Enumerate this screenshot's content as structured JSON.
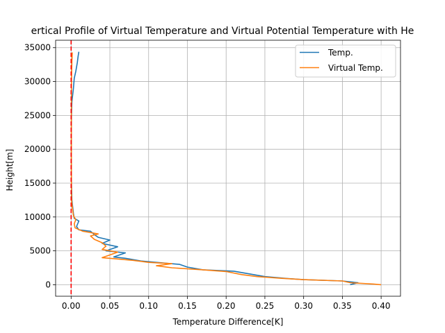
{
  "chart_data": {
    "type": "line",
    "title": "ertical Profile of Virtual Temperature and Virtual Potential Temperature with He",
    "xlabel": "Temperature Difference[K]",
    "ylabel": "Height[m]",
    "xlim": [
      -0.02,
      0.425
    ],
    "ylim": [
      -1700,
      36100
    ],
    "xticks": [
      0.0,
      0.05,
      0.1,
      0.15,
      0.2,
      0.25,
      0.3,
      0.35,
      0.4
    ],
    "xtick_labels": [
      "0.00",
      "0.05",
      "0.10",
      "0.15",
      "0.20",
      "0.25",
      "0.30",
      "0.35",
      "0.40"
    ],
    "yticks": [
      0,
      5000,
      10000,
      15000,
      20000,
      25000,
      30000,
      35000
    ],
    "ytick_labels": [
      "0",
      "5000",
      "10000",
      "15000",
      "20000",
      "25000",
      "30000",
      "35000"
    ],
    "grid": true,
    "legend_position": "top-right",
    "reference_line": {
      "x": 0.0,
      "color": "#ff0000",
      "style": "dashed"
    },
    "series": [
      {
        "name": "Temp.",
        "color": "#1f77b4",
        "points": [
          [
            0.36,
            0
          ],
          [
            0.37,
            300
          ],
          [
            0.35,
            550
          ],
          [
            0.3,
            750
          ],
          [
            0.28,
            900
          ],
          [
            0.25,
            1200
          ],
          [
            0.23,
            1600
          ],
          [
            0.21,
            2000
          ],
          [
            0.17,
            2200
          ],
          [
            0.15,
            2600
          ],
          [
            0.14,
            3000
          ],
          [
            0.12,
            3200
          ],
          [
            0.09,
            3500
          ],
          [
            0.07,
            3900
          ],
          [
            0.055,
            4100
          ],
          [
            0.07,
            4700
          ],
          [
            0.045,
            5000
          ],
          [
            0.06,
            5600
          ],
          [
            0.04,
            6100
          ],
          [
            0.05,
            6600
          ],
          [
            0.035,
            7000
          ],
          [
            0.03,
            7400
          ],
          [
            0.025,
            7900
          ],
          [
            0.01,
            8100
          ],
          [
            0.007,
            8600
          ],
          [
            0.01,
            9400
          ],
          [
            0.004,
            9800
          ],
          [
            0.003,
            10500
          ],
          [
            0.002,
            11500
          ],
          [
            0.001,
            12500
          ],
          [
            0.0005,
            15000
          ],
          [
            0.0003,
            20000
          ],
          [
            0.0005,
            25000
          ],
          [
            0.001,
            27000
          ],
          [
            0.003,
            29000
          ],
          [
            0.004,
            30500
          ],
          [
            0.006,
            31500
          ],
          [
            0.008,
            32800
          ],
          [
            0.009,
            33700
          ],
          [
            0.01,
            34400
          ]
        ]
      },
      {
        "name": "Virtual Temp.",
        "color": "#ff7f0e",
        "points": [
          [
            0.4,
            0
          ],
          [
            0.39,
            100
          ],
          [
            0.36,
            300
          ],
          [
            0.35,
            550
          ],
          [
            0.3,
            750
          ],
          [
            0.27,
            950
          ],
          [
            0.24,
            1200
          ],
          [
            0.22,
            1500
          ],
          [
            0.2,
            1950
          ],
          [
            0.17,
            2200
          ],
          [
            0.13,
            2500
          ],
          [
            0.11,
            2800
          ],
          [
            0.13,
            3100
          ],
          [
            0.1,
            3300
          ],
          [
            0.08,
            3600
          ],
          [
            0.06,
            3800
          ],
          [
            0.04,
            4000
          ],
          [
            0.05,
            4400
          ],
          [
            0.06,
            4800
          ],
          [
            0.04,
            5200
          ],
          [
            0.045,
            5700
          ],
          [
            0.04,
            6200
          ],
          [
            0.03,
            6700
          ],
          [
            0.025,
            7200
          ],
          [
            0.035,
            7500
          ],
          [
            0.015,
            7900
          ],
          [
            0.005,
            8400
          ],
          [
            0.004,
            9000
          ],
          [
            0.006,
            9600
          ],
          [
            0.003,
            10200
          ],
          [
            0.002,
            11000
          ],
          [
            0.001,
            12000
          ],
          [
            0.0005,
            13000
          ],
          [
            0.0003,
            18000
          ],
          [
            0.0003,
            25000
          ],
          [
            0.0005,
            30000
          ],
          [
            0.001,
            33000
          ],
          [
            0.0015,
            34300
          ]
        ]
      }
    ]
  }
}
